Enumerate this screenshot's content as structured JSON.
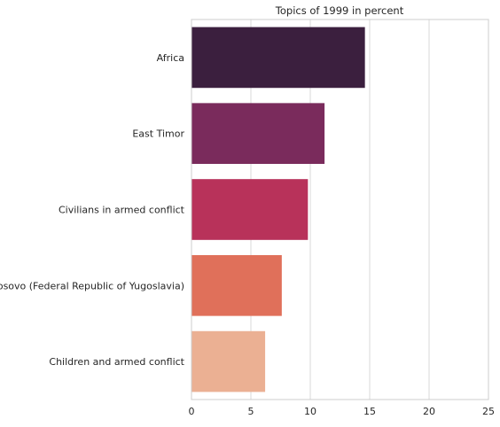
{
  "chart_data": {
    "type": "bar",
    "orientation": "horizontal",
    "title": "Topics of 1999 in percent",
    "xlabel": "",
    "ylabel": "",
    "categories": [
      "Africa",
      "East Timor",
      "Civilians in armed conflict",
      "Kosovo (Federal Republic of Yugoslavia)",
      "Children and armed conflict"
    ],
    "values": [
      14.6,
      11.2,
      9.8,
      7.6,
      6.2
    ],
    "colors": [
      "#3b1f3e",
      "#7a2b5c",
      "#b8325a",
      "#e0705a",
      "#ebb093"
    ],
    "xlim": [
      0,
      25
    ],
    "xticks": [
      0,
      5,
      10,
      15,
      20,
      25
    ],
    "grid": "vertical"
  }
}
